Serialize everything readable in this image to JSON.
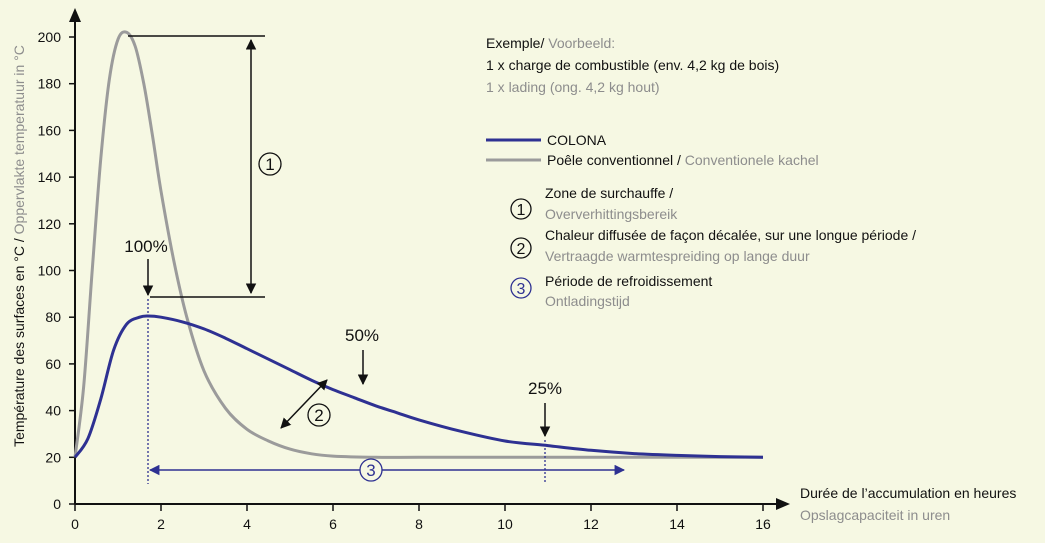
{
  "chart_data": {
    "type": "line",
    "ylabel": {
      "fr": "Température des surfaces en °C / ",
      "nl": "Oppervlakte temperatuur in °C"
    },
    "xlabel": {
      "fr": "Durée de l’accumulation en heures",
      "nl": "Opslagcapaciteit in uren"
    },
    "x_ticks": [
      "0",
      "2",
      "4",
      "6",
      "8",
      "10",
      "12",
      "14",
      "16"
    ],
    "y_ticks": [
      "0",
      "20",
      "40",
      "60",
      "80",
      "100",
      "120",
      "140",
      "160",
      "180",
      "200"
    ],
    "xlim": [
      0,
      16
    ],
    "ylim": [
      0,
      200
    ],
    "grid": false,
    "legend_position": "top-right",
    "series": [
      {
        "name": "COLONA",
        "color": "#2e3192",
        "x": [
          0,
          0.3,
          0.6,
          0.9,
          1.2,
          1.5,
          1.7,
          2,
          2.5,
          3,
          3.5,
          4,
          4.5,
          5,
          5.5,
          6,
          6.5,
          7,
          7.5,
          8,
          9,
          10,
          11,
          12,
          13,
          14,
          15,
          16
        ],
        "y": [
          20,
          28,
          45,
          66,
          77,
          80,
          80.5,
          80,
          78,
          75,
          71,
          66.5,
          62,
          57.5,
          53,
          49,
          45.5,
          42,
          39,
          36,
          31,
          27,
          25,
          23,
          21.6,
          20.8,
          20.3,
          20
        ]
      },
      {
        "name": "Poêle conventionnel / Conventionele kachel",
        "color": "#9b9b9b",
        "x": [
          0,
          0.2,
          0.4,
          0.6,
          0.8,
          1,
          1.2,
          1.4,
          1.6,
          1.8,
          2,
          2.3,
          2.6,
          3,
          3.5,
          4,
          4.5,
          5,
          5.5,
          6,
          7,
          8,
          10,
          12,
          14,
          16
        ],
        "y": [
          20,
          50,
          100,
          148,
          182,
          199,
          202,
          196,
          180,
          158,
          134,
          104,
          80,
          57,
          41,
          32,
          27,
          23.5,
          21.5,
          20.5,
          20,
          20,
          20,
          20,
          20,
          20
        ]
      }
    ],
    "annotations": {
      "peak": "100%",
      "half": "50%",
      "quarter": "25%",
      "zone1": "1",
      "zone2": "2",
      "zone3": "3"
    },
    "legend": {
      "example_fr": "Exemple/ ",
      "example_nl": "Voorbeeld:",
      "charge_fr": "1 x charge de combustible (env. 4,2 kg de bois)",
      "charge_nl": "1 x lading (ong. 4,2 kg hout)",
      "colona": "COLONA",
      "conv_fr": "Poêle conventionnel / ",
      "conv_nl": "Conventionele kachel",
      "z1_fr": "Zone de surchauffe /",
      "z1_nl": "Oververhittingsbereik",
      "z2_fr": "Chaleur diffusée de façon décalée, sur une longue période /",
      "z2_nl": "Vertraagde warmtespreiding op lange duur",
      "z3_fr": "Période de refroidissement",
      "z3_nl": "Ontladingstijd"
    },
    "colors": {
      "background": "#f6f8e3",
      "colona": "#2e3192",
      "conventional": "#9b9b9b",
      "secondary_text": "#8d8d8d",
      "axis": "#111111"
    }
  }
}
